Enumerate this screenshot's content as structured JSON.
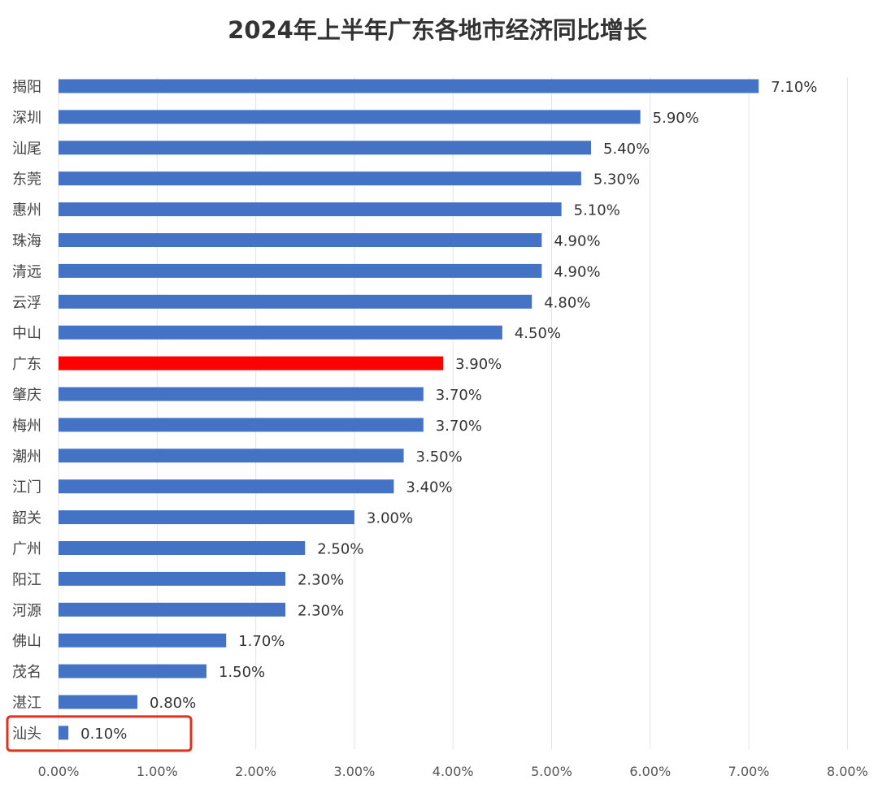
{
  "chart_data": {
    "type": "bar",
    "orientation": "horizontal",
    "title": "2024年上半年广东各地市经济同比增长",
    "xlabel": "",
    "ylabel": "",
    "xlim": [
      0,
      8
    ],
    "x_ticks": [
      "0.00%",
      "1.00%",
      "2.00%",
      "3.00%",
      "4.00%",
      "5.00%",
      "6.00%",
      "7.00%",
      "8.00%"
    ],
    "grid": "vertical",
    "categories": [
      "揭阳",
      "深圳",
      "汕尾",
      "东莞",
      "惠州",
      "珠海",
      "清远",
      "云浮",
      "中山",
      "广东",
      "肇庆",
      "梅州",
      "潮州",
      "江门",
      "韶关",
      "广州",
      "阳江",
      "河源",
      "佛山",
      "茂名",
      "湛江",
      "汕头"
    ],
    "values": [
      7.1,
      5.9,
      5.4,
      5.3,
      5.1,
      4.9,
      4.9,
      4.8,
      4.5,
      3.9,
      3.7,
      3.7,
      3.5,
      3.4,
      3.0,
      2.5,
      2.3,
      2.3,
      1.7,
      1.5,
      0.8,
      0.1
    ],
    "data_labels": [
      "7.10%",
      "5.90%",
      "5.40%",
      "5.30%",
      "5.10%",
      "4.90%",
      "4.90%",
      "4.80%",
      "4.50%",
      "3.90%",
      "3.70%",
      "3.70%",
      "3.50%",
      "3.40%",
      "3.00%",
      "2.50%",
      "2.30%",
      "2.30%",
      "1.70%",
      "1.50%",
      "0.80%",
      "0.10%"
    ],
    "colors": {
      "default": "#4472C4",
      "highlight": "#FF0000",
      "box": "#E0301E"
    },
    "highlight_category": "广东",
    "boxed_category": "汕头"
  }
}
